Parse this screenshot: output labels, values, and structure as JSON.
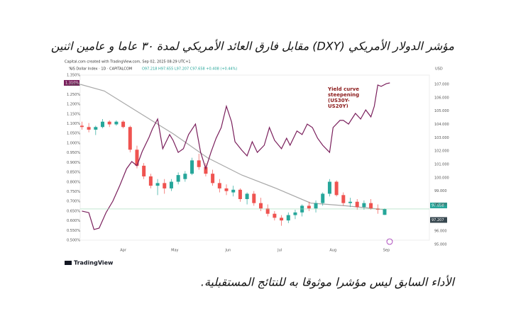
{
  "header": {
    "title": "مؤشر الدولار الأمريكي (DXY) مقابل فارق العائد الأمريكي لمدة ٣٠ عاما و عامين اثنين"
  },
  "chart_data": {
    "type": "candlestick",
    "credit": "Capital.com created with TradingView.com, Sep 02, 2025 08:29 UTC+1",
    "subtitle": "US Dollar Index · 1D · CAPITALCOM",
    "ohlc": "O97.218 H97.655 L97.207 C97.658 +0.408 (+0.44%)",
    "y_unit": "%",
    "y2_unit": "USD",
    "annotation": "Yield curve steepening (US30Y-US20Y)",
    "spread_tag": "1.310%",
    "price_tag": "97.658",
    "low_tag": "97.207",
    "xlim": [
      66,
      269
    ],
    "xticks": [
      {
        "value": 91,
        "label": "Apr"
      },
      {
        "value": 121,
        "label": "May"
      },
      {
        "value": 152,
        "label": "Jun"
      },
      {
        "value": 182,
        "label": "Jul"
      },
      {
        "value": 213,
        "label": "Aug"
      },
      {
        "value": 244,
        "label": "Sep"
      }
    ],
    "ylim": [
      0.5,
      1.35
    ],
    "yticks": [
      {
        "value": 1.35,
        "label": "1.350%"
      },
      {
        "value": 1.3,
        "label": "1.300%"
      },
      {
        "value": 1.25,
        "label": "1.250%"
      },
      {
        "value": 1.2,
        "label": "1.200%"
      },
      {
        "value": 1.15,
        "label": "1.150%"
      },
      {
        "value": 1.1,
        "label": "1.100%"
      },
      {
        "value": 1.05,
        "label": "1.050%"
      },
      {
        "value": 1.0,
        "label": "1.000%"
      },
      {
        "value": 0.95,
        "label": "0.950%"
      },
      {
        "value": 0.9,
        "label": "0.900%"
      },
      {
        "value": 0.85,
        "label": "0.850%"
      },
      {
        "value": 0.8,
        "label": "0.800%"
      },
      {
        "value": 0.75,
        "label": "0.750%"
      },
      {
        "value": 0.7,
        "label": "0.700%"
      },
      {
        "value": 0.65,
        "label": "0.650%"
      },
      {
        "value": 0.6,
        "label": "0.600%"
      },
      {
        "value": 0.55,
        "label": "0.550%"
      },
      {
        "value": 0.5,
        "label": "0.500%"
      }
    ],
    "y2lim": [
      95.32,
      107.69
    ],
    "y2ticks": [
      {
        "value": 107,
        "label": "107.000"
      },
      {
        "value": 106,
        "label": "106.000"
      },
      {
        "value": 105,
        "label": "105.000"
      },
      {
        "value": 104,
        "label": "104.000"
      },
      {
        "value": 103,
        "label": "103.000"
      },
      {
        "value": 102,
        "label": "102.000"
      },
      {
        "value": 101,
        "label": "101.000"
      },
      {
        "value": 100,
        "label": "100.000"
      },
      {
        "value": 99,
        "label": "99.000"
      },
      {
        "value": 98,
        "label": "98.000"
      },
      {
        "value": 96,
        "label": "96.000"
      },
      {
        "value": 95,
        "label": "95.000"
      }
    ],
    "x": [
      67,
      71,
      75,
      79,
      83,
      87,
      91,
      95,
      99,
      103,
      107,
      111,
      115,
      119,
      123,
      127,
      131,
      135,
      139,
      143,
      147,
      151,
      155,
      159,
      163,
      167,
      171,
      175,
      179,
      183,
      187,
      191,
      195,
      199,
      203,
      207,
      211,
      215,
      219,
      223,
      227,
      231,
      235,
      239,
      243
    ],
    "open": [
      103.9,
      103.8,
      103.6,
      103.8,
      104.2,
      104.0,
      104.2,
      103.8,
      102.1,
      100.9,
      100.1,
      99.4,
      99.6,
      99.2,
      99.7,
      99.9,
      100.3,
      101.3,
      100.8,
      100.3,
      99.6,
      99.2,
      98.9,
      99.1,
      98.4,
      98.8,
      98.1,
      97.7,
      97.3,
      97.0,
      96.8,
      97.2,
      97.4,
      97.9,
      97.7,
      98.1,
      98.8,
      99.7,
      98.7,
      98.1,
      98.2,
      97.8,
      98.1,
      97.7,
      97.218
    ],
    "high": [
      104.2,
      104.1,
      103.9,
      104.4,
      104.3,
      104.3,
      104.3,
      103.9,
      102.4,
      101.1,
      100.3,
      99.9,
      99.9,
      99.9,
      100.4,
      100.5,
      101.5,
      101.8,
      101.1,
      100.6,
      99.9,
      99.5,
      99.4,
      99.2,
      98.9,
      99.0,
      98.5,
      98.0,
      97.5,
      97.2,
      97.4,
      97.6,
      98.0,
      98.2,
      98.3,
      98.9,
      99.9,
      99.8,
      98.9,
      98.5,
      98.4,
      98.3,
      98.4,
      98.0,
      97.7
    ],
    "low": [
      103.6,
      103.4,
      103.2,
      103.7,
      103.8,
      103.9,
      103.7,
      101.9,
      100.7,
      99.9,
      99.2,
      98.7,
      98.8,
      99.0,
      99.5,
      99.7,
      100.2,
      100.6,
      100.1,
      99.4,
      98.9,
      98.7,
      98.6,
      98.2,
      98.0,
      97.9,
      97.5,
      97.1,
      96.8,
      96.4,
      96.6,
      96.9,
      97.1,
      97.5,
      97.4,
      97.9,
      98.6,
      98.6,
      97.9,
      97.8,
      97.6,
      97.6,
      97.6,
      97.3,
      97.207
    ],
    "close": [
      103.8,
      103.6,
      103.8,
      104.2,
      104.0,
      104.2,
      103.8,
      102.1,
      100.9,
      100.1,
      99.4,
      99.6,
      99.2,
      99.7,
      100.2,
      100.3,
      101.3,
      100.8,
      100.3,
      99.6,
      99.2,
      99.0,
      99.1,
      98.4,
      98.8,
      98.1,
      97.7,
      97.3,
      97.0,
      96.8,
      97.2,
      97.4,
      97.9,
      97.7,
      98.1,
      98.8,
      99.7,
      98.7,
      98.1,
      98.2,
      97.8,
      98.1,
      97.7,
      97.6,
      97.658
    ],
    "color_up": "#26a69a",
    "color_down": "#ef5350",
    "ma_x": [
      66,
      80,
      100,
      120,
      140,
      160,
      180,
      200,
      220,
      244
    ],
    "ma_values": [
      107.0,
      106.5,
      104.9,
      103.3,
      101.5,
      100.2,
      99.2,
      98.1,
      97.9,
      97.6
    ],
    "ma_color": "#a8a8a8",
    "spread_x": [
      67,
      71,
      74,
      77,
      81,
      85,
      89,
      93,
      96,
      99,
      102,
      106,
      108,
      111,
      114,
      118,
      120,
      123,
      126,
      129,
      133,
      136,
      139,
      142,
      145,
      148,
      151,
      154,
      156,
      160,
      163,
      166,
      169,
      173,
      176,
      179,
      183,
      186,
      188,
      192,
      195,
      198,
      201,
      204,
      207,
      211,
      213,
      217,
      219,
      222,
      226,
      229,
      232,
      235,
      237,
      239,
      241,
      244,
      246
    ],
    "spread_values": [
      0.65,
      0.642,
      0.555,
      0.562,
      0.642,
      0.701,
      0.781,
      0.868,
      0.905,
      0.883,
      0.956,
      1.029,
      1.073,
      1.124,
      0.971,
      1.044,
      1.014,
      0.952,
      0.971,
      1.044,
      1.098,
      0.952,
      0.868,
      0.952,
      1.025,
      1.08,
      1.19,
      1.109,
      1.007,
      0.963,
      0.934,
      1.007,
      0.952,
      0.989,
      1.08,
      1.014,
      0.971,
      1.025,
      0.989,
      1.062,
      1.044,
      1.098,
      1.08,
      1.025,
      0.989,
      0.952,
      1.08,
      1.117,
      1.117,
      1.098,
      1.153,
      1.124,
      1.171,
      1.135,
      1.19,
      1.299,
      1.292,
      1.306,
      1.31
    ],
    "spread_color": "#7a1f5c"
  },
  "footer": {
    "brand": "TradingView",
    "disclaimer": "الأداء السابق ليس مؤشرا موثوقا به للنتائج المستقبلية."
  }
}
